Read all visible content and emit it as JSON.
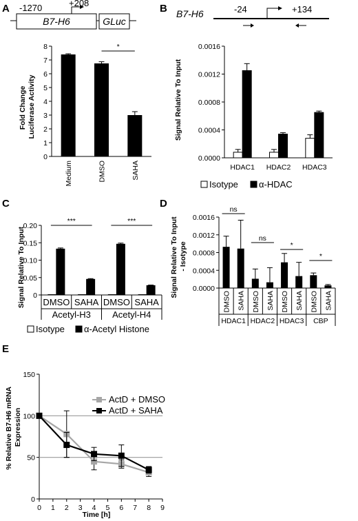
{
  "chart_data": [
    {
      "id": "A",
      "type": "bar",
      "panel_label": "A",
      "construct": {
        "gene": "B7-H6",
        "reporter": "GLuc",
        "start": "-1270",
        "end": "+208"
      },
      "categories": [
        "Medium",
        "DMSO",
        "SAHA"
      ],
      "values": [
        7.4,
        6.75,
        3.0
      ],
      "errors": [
        0.05,
        0.12,
        0.25
      ],
      "ylabel": "Fold Change Luciferase Activity",
      "ylabel_lines": [
        "Fold Change",
        "Luciferase Activity"
      ],
      "ylim": [
        0,
        8
      ],
      "yticks": [
        "0",
        "1",
        "2",
        "3",
        "4",
        "5",
        "6",
        "7",
        "8"
      ],
      "significance": [
        {
          "from": 1,
          "to": 2,
          "label": "*"
        }
      ]
    },
    {
      "id": "B",
      "type": "bar",
      "panel_label": "B",
      "construct": {
        "gene": "B7-H6",
        "left": "-24",
        "right": "+134"
      },
      "categories": [
        "HDAC1",
        "HDAC2",
        "HDAC3"
      ],
      "series": [
        {
          "name": "Isotype",
          "values": [
            8e-05,
            8e-05,
            0.00028
          ],
          "errors": [
            4e-05,
            4e-05,
            5e-05
          ],
          "color": "#ffffff"
        },
        {
          "name": "α-HDAC",
          "values": [
            0.00125,
            0.00034,
            0.00065
          ],
          "errors": [
            0.0001,
            2e-05,
            2e-05
          ],
          "color": "#000000"
        }
      ],
      "ylabel": "Signal Relative To Input",
      "ylim": [
        0,
        0.0016
      ],
      "yticks": [
        "0.0000",
        "0.0004",
        "0.0008",
        "0.0012",
        "0.0016"
      ],
      "legend_position": "bottom"
    },
    {
      "id": "C",
      "type": "bar",
      "panel_label": "C",
      "categories": [
        "DMSO",
        "SAHA",
        "DMSO",
        "SAHA"
      ],
      "groups": [
        "Acetyl-H3",
        "Acetyl-H4"
      ],
      "series": [
        {
          "name": "Isotype",
          "values": [
            0.001,
            0.001,
            0.001,
            0.001
          ],
          "errors": [
            0,
            0,
            0,
            0
          ],
          "color": "#ffffff"
        },
        {
          "name": "α-Acetyl Histone",
          "values": [
            0.132,
            0.045,
            0.146,
            0.027
          ],
          "errors": [
            0.003,
            0.002,
            0.003,
            0.0015
          ],
          "color": "#000000"
        }
      ],
      "ylabel": "Signal Relative To Input",
      "ylim": [
        0,
        0.2
      ],
      "yticks": [
        "0",
        "0.05",
        "0.10",
        "0.15",
        "0.20"
      ],
      "significance": [
        {
          "from": 0,
          "to": 1,
          "label": "***"
        },
        {
          "from": 2,
          "to": 3,
          "label": "***"
        }
      ],
      "legend_position": "bottom"
    },
    {
      "id": "D",
      "type": "bar",
      "panel_label": "D",
      "categories": [
        "DMSO",
        "SAHA",
        "DMSO",
        "SAHA",
        "DMSO",
        "SAHA",
        "DMSO",
        "SAHA"
      ],
      "groups": [
        "HDAC1",
        "HDAC2",
        "HDAC3",
        "CBP"
      ],
      "values": [
        0.00093,
        0.00089,
        0.00021,
        0.00013,
        0.00058,
        0.00027,
        0.00029,
        6e-05
      ],
      "errors": [
        0.00024,
        0.00064,
        0.00022,
        0.00033,
        0.0002,
        0.00031,
        5e-05,
        2e-05
      ],
      "ylabel": "Signal Relative To Input - Isotype",
      "ylabel_lines": [
        "Signal Relative To Input",
        "- Isotype"
      ],
      "ylim": [
        0,
        0.0016
      ],
      "yticks": [
        "0.0000",
        "0.0004",
        "0.0008",
        "0.0012",
        "0.0016"
      ],
      "significance": [
        {
          "from": 0,
          "to": 1,
          "label": "ns"
        },
        {
          "from": 2,
          "to": 3,
          "label": "ns"
        },
        {
          "from": 4,
          "to": 5,
          "label": "*"
        },
        {
          "from": 6,
          "to": 7,
          "label": "*"
        }
      ]
    },
    {
      "id": "E",
      "type": "line",
      "panel_label": "E",
      "series": [
        {
          "name": "ActD + DMSO",
          "x": [
            0,
            2,
            4,
            6,
            8
          ],
          "values": [
            100,
            78,
            45,
            42,
            32
          ],
          "errors": [
            0,
            28,
            10,
            5,
            5
          ],
          "color": "#a6a6a6"
        },
        {
          "name": "ActD + SAHA",
          "x": [
            0,
            2,
            4,
            6,
            8
          ],
          "values": [
            100,
            65,
            54,
            52,
            35
          ],
          "errors": [
            0,
            15,
            8,
            13,
            4
          ],
          "color": "#000000"
        }
      ],
      "xlabel": "Time [h]",
      "ylabel": "% Relative B7-H6 mRNA Expression",
      "ylabel_lines": [
        "% Relative B7-H6 mRNA",
        "Expression"
      ],
      "xlim": [
        0,
        9
      ],
      "ylim": [
        0,
        150
      ],
      "xticks": [
        "0",
        "1",
        "2",
        "3",
        "4",
        "5",
        "6",
        "7",
        "8",
        "9"
      ],
      "yticks": [
        "0",
        "50",
        "100",
        "150"
      ],
      "reference_lines": [
        50,
        100
      ],
      "legend_position": "top-right"
    }
  ]
}
